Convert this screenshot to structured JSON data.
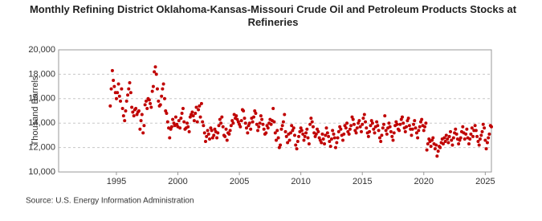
{
  "chart_data": {
    "type": "scatter",
    "title": "Monthly Refining District Oklahoma-Kansas-Missouri Crude Oil and Petroleum Products Stocks at Refineries",
    "y_label": "Thousand Barrels",
    "source": "Source: U.S. Energy Information Administration",
    "xlim": [
      1990.3,
      2025.5
    ],
    "xticks": [
      1995,
      2000,
      2005,
      2010,
      2015,
      2020,
      2025
    ],
    "ylim": [
      10000,
      20000
    ],
    "yticks": [
      {
        "value": 10000,
        "label": "10,000"
      },
      {
        "value": 12000,
        "label": "12,000"
      },
      {
        "value": 14000,
        "label": "14,000"
      },
      {
        "value": 16000,
        "label": "16,000"
      },
      {
        "value": 18000,
        "label": "18,000"
      },
      {
        "value": 20000,
        "label": "20,000"
      }
    ],
    "grid": true,
    "color": "#c00000",
    "x": [
      1994.5,
      1994.58,
      1994.67,
      1994.75,
      1994.83,
      1994.92,
      1995,
      1995.08,
      1995.17,
      1995.25,
      1995.33,
      1995.42,
      1995.5,
      1995.58,
      1995.67,
      1995.75,
      1995.83,
      1995.92,
      1996,
      1996.08,
      1996.17,
      1996.25,
      1996.33,
      1996.42,
      1996.5,
      1996.58,
      1996.67,
      1996.75,
      1996.83,
      1996.92,
      1997,
      1997.08,
      1997.17,
      1997.25,
      1997.33,
      1997.42,
      1997.5,
      1997.58,
      1997.67,
      1997.75,
      1997.83,
      1997.92,
      1998,
      1998.08,
      1998.17,
      1998.25,
      1998.33,
      1998.42,
      1998.5,
      1998.58,
      1998.67,
      1998.75,
      1998.83,
      1998.92,
      1999,
      1999.08,
      1999.17,
      1999.25,
      1999.33,
      1999.42,
      1999.5,
      1999.58,
      1999.67,
      1999.75,
      1999.83,
      1999.92,
      2000,
      2000.08,
      2000.17,
      2000.25,
      2000.33,
      2000.42,
      2000.5,
      2000.58,
      2000.67,
      2000.75,
      2000.83,
      2000.92,
      2001,
      2001.08,
      2001.17,
      2001.25,
      2001.33,
      2001.42,
      2001.5,
      2001.58,
      2001.67,
      2001.75,
      2001.83,
      2001.92,
      2002,
      2002.08,
      2002.17,
      2002.25,
      2002.33,
      2002.42,
      2002.5,
      2002.58,
      2002.67,
      2002.75,
      2002.83,
      2002.92,
      2003,
      2003.08,
      2003.17,
      2003.25,
      2003.33,
      2003.42,
      2003.5,
      2003.58,
      2003.67,
      2003.75,
      2003.83,
      2003.92,
      2004,
      2004.08,
      2004.17,
      2004.25,
      2004.33,
      2004.42,
      2004.5,
      2004.58,
      2004.67,
      2004.75,
      2004.83,
      2004.92,
      2005,
      2005.08,
      2005.17,
      2005.25,
      2005.33,
      2005.42,
      2005.5,
      2005.58,
      2005.67,
      2005.75,
      2005.83,
      2005.92,
      2006,
      2006.08,
      2006.17,
      2006.25,
      2006.33,
      2006.42,
      2006.5,
      2006.58,
      2006.67,
      2006.75,
      2006.83,
      2006.92,
      2007,
      2007.08,
      2007.17,
      2007.25,
      2007.33,
      2007.42,
      2007.5,
      2007.58,
      2007.67,
      2007.75,
      2007.83,
      2007.92,
      2008,
      2008.08,
      2008.17,
      2008.25,
      2008.33,
      2008.42,
      2008.5,
      2008.58,
      2008.67,
      2008.75,
      2008.83,
      2008.92,
      2009,
      2009.08,
      2009.17,
      2009.25,
      2009.33,
      2009.42,
      2009.5,
      2009.58,
      2009.67,
      2009.75,
      2009.83,
      2009.92,
      2010,
      2010.08,
      2010.17,
      2010.25,
      2010.33,
      2010.42,
      2010.5,
      2010.58,
      2010.67,
      2010.75,
      2010.83,
      2010.92,
      2011,
      2011.08,
      2011.17,
      2011.25,
      2011.33,
      2011.42,
      2011.5,
      2011.58,
      2011.67,
      2011.75,
      2011.83,
      2011.92,
      2012,
      2012.08,
      2012.17,
      2012.25,
      2012.33,
      2012.42,
      2012.5,
      2012.58,
      2012.67,
      2012.75,
      2012.83,
      2012.92,
      2013,
      2013.08,
      2013.17,
      2013.25,
      2013.33,
      2013.42,
      2013.5,
      2013.58,
      2013.67,
      2013.75,
      2013.83,
      2013.92,
      2014,
      2014.08,
      2014.17,
      2014.25,
      2014.33,
      2014.42,
      2014.5,
      2014.58,
      2014.67,
      2014.75,
      2014.83,
      2014.92,
      2015,
      2015.08,
      2015.17,
      2015.25,
      2015.33,
      2015.42,
      2015.5,
      2015.58,
      2015.67,
      2015.75,
      2015.83,
      2015.92,
      2016,
      2016.08,
      2016.17,
      2016.25,
      2016.33,
      2016.42,
      2016.5,
      2016.58,
      2016.67,
      2016.75,
      2016.83,
      2016.92,
      2017,
      2017.08,
      2017.17,
      2017.25,
      2017.33,
      2017.42,
      2017.5,
      2017.58,
      2017.67,
      2017.75,
      2017.83,
      2017.92,
      2018,
      2018.08,
      2018.17,
      2018.25,
      2018.33,
      2018.42,
      2018.5,
      2018.58,
      2018.67,
      2018.75,
      2018.83,
      2018.92,
      2019,
      2019.08,
      2019.17,
      2019.25,
      2019.33,
      2019.42,
      2019.5,
      2019.58,
      2019.67,
      2019.75,
      2019.83,
      2019.92,
      2020,
      2020.08,
      2020.17,
      2020.25,
      2020.33,
      2020.42,
      2020.5,
      2020.58,
      2020.67,
      2020.75,
      2020.83,
      2020.92,
      2021,
      2021.08,
      2021.17,
      2021.25,
      2021.33,
      2021.42,
      2021.5,
      2021.58,
      2021.67,
      2021.75,
      2021.83,
      2021.92,
      2022,
      2022.08,
      2022.17,
      2022.25,
      2022.33,
      2022.42,
      2022.5,
      2022.58,
      2022.67,
      2022.75,
      2022.83,
      2022.92,
      2023,
      2023.08,
      2023.17,
      2023.25,
      2023.33,
      2023.42,
      2023.5,
      2023.58,
      2023.67,
      2023.75,
      2023.83,
      2023.92,
      2024,
      2024.08,
      2024.17,
      2024.25,
      2024.33,
      2024.42,
      2024.5,
      2024.58,
      2024.67,
      2024.75,
      2024.83,
      2024.92,
      2025,
      2025.08,
      2025.17,
      2025.25,
      2025.33,
      2025.42,
      2025.5
    ],
    "values": [
      15400,
      16800,
      18300,
      17500,
      17000,
      16500,
      16000,
      16500,
      17200,
      16200,
      15800,
      16800,
      15200,
      14600,
      14200,
      15000,
      15800,
      16300,
      16800,
      17300,
      16500,
      15300,
      14900,
      14600,
      15100,
      15200,
      14700,
      14900,
      15000,
      13500,
      14200,
      14700,
      13200,
      13800,
      15500,
      15800,
      15200,
      16000,
      15900,
      15600,
      15300,
      16600,
      17000,
      18200,
      18600,
      18000,
      16800,
      15800,
      15400,
      15500,
      16200,
      16800,
      17200,
      16000,
      15000,
      14800,
      14100,
      13600,
      12800,
      13500,
      13700,
      14300,
      14000,
      13800,
      14500,
      13900,
      13700,
      14200,
      13600,
      14400,
      14800,
      15200,
      14100,
      13500,
      13600,
      14000,
      13700,
      13300,
      14500,
      14700,
      14900,
      14600,
      14200,
      14800,
      15300,
      14100,
      15100,
      15400,
      14500,
      15600,
      14100,
      13800,
      13200,
      12500,
      12900,
      13400,
      13100,
      12700,
      13600,
      13400,
      12800,
      13000,
      13500,
      13300,
      12800,
      13200,
      13800,
      14300,
      14000,
      14500,
      13700,
      13000,
      12900,
      13500,
      12600,
      13200,
      13100,
      13400,
      13800,
      14200,
      14000,
      14700,
      14400,
      14600,
      14300,
      14100,
      13900,
      13700,
      14200,
      15100,
      15000,
      14400,
      14000,
      13600,
      13200,
      13800,
      14000,
      13500,
      14400,
      14100,
      14500,
      15000,
      14800,
      13900,
      13400,
      13700,
      14000,
      14600,
      14300,
      13900,
      13500,
      13100,
      13200,
      13800,
      13600,
      14000,
      14300,
      13900,
      14200,
      15200,
      14100,
      13200,
      12600,
      13400,
      12800,
      12000,
      12200,
      13500,
      13800,
      14100,
      14700,
      13300,
      12900,
      12400,
      13100,
      12600,
      13200,
      13800,
      13400,
      13600,
      13000,
      12200,
      11900,
      12500,
      12900,
      13300,
      13600,
      13400,
      13100,
      12600,
      12900,
      13200,
      13500,
      12800,
      12300,
      13900,
      14400,
      14100,
      13700,
      13200,
      12900,
      13100,
      13500,
      13300,
      12800,
      12600,
      12400,
      13100,
      12700,
      12300,
      13000,
      13600,
      13200,
      12900,
      12500,
      12100,
      12700,
      13400,
      13100,
      12800,
      12000,
      12400,
      12800,
      13300,
      13700,
      13500,
      13000,
      12600,
      13100,
      13800,
      13600,
      14000,
      13300,
      13100,
      13500,
      13800,
      14500,
      14300,
      13900,
      13400,
      13200,
      13600,
      14000,
      14200,
      13700,
      13300,
      13900,
      14400,
      14700,
      14100,
      13600,
      13200,
      12900,
      13300,
      13800,
      14200,
      14000,
      13500,
      13200,
      13700,
      14100,
      13800,
      13400,
      12800,
      12500,
      13000,
      13600,
      13900,
      14600,
      13400,
      13100,
      13600,
      14000,
      13700,
      13300,
      12900,
      12600,
      13200,
      13800,
      14100,
      13900,
      13500,
      13400,
      13900,
      14300,
      14500,
      14000,
      13600,
      13300,
      13700,
      14200,
      14400,
      13800,
      13500,
      13000,
      13500,
      13900,
      14200,
      13600,
      13200,
      12800,
      13400,
      13700,
      14100,
      14300,
      13800,
      13400,
      13700,
      14000,
      11800,
      12300,
      12700,
      12500,
      12100,
      12600,
      12800,
      12300,
      11900,
      12200,
      11300,
      11700,
      12100,
      12000,
      12400,
      12700,
      12300,
      12800,
      12500,
      13000,
      12700,
      12400,
      12900,
      13300,
      12600,
      12200,
      12800,
      13200,
      13500,
      13100,
      12700,
      12300,
      12600,
      12800,
      13300,
      13700,
      13200,
      12700,
      13100,
      13500,
      12800,
      12300,
      12700,
      13100,
      13600,
      12900,
      13400,
      13800,
      13400,
      12900,
      12500,
      12200,
      12700,
      13000,
      13300,
      13900,
      13600,
      12600,
      11900,
      12400,
      12800,
      13100,
      13800,
      13700
    ]
  }
}
